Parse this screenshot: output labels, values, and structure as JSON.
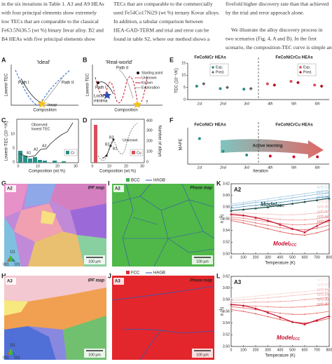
{
  "body_text": {
    "columns": [
      [
        "in the six iterations in Table 1. A3 and A9 HEAs",
        "with four principal elements show extremely",
        "low TECs that are comparable to the classical",
        "Fe63.5Ni36.5 (wt %) binary Invar alloy. B2 and",
        "B4 HEAs with five principal elements show"
      ],
      [
        "TECs that are comparable to the commercially",
        "used Fe54Co17Ni29 (wt %) ternary Kovar alloys.",
        "In addition, a tabular comparison between",
        "HEA-GAD-TERM and trial and error can be",
        "found in table S2, where our method shows a"
      ],
      [
        "fivefold higher discovery rate than that achieved",
        "by the trial and error approach alone.",
        "We illustrate the alloy discovery process in",
        "two scenarios (Fig. 4, A and B). In the first",
        "scenario, the composition-TEC curve is simple and"
      ]
    ]
  },
  "panels": {
    "A": {
      "label": "A",
      "title": "'Ideal'",
      "y_label": "Lowest-TEC",
      "x_label": "Composition",
      "annotations": [
        "Path I",
        "Path II",
        "Invar"
      ]
    },
    "B": {
      "label": "B",
      "title": "'Real-world'",
      "y_label": "Lowest-TEC",
      "x_label": "Composition",
      "annotations": [
        "Path I",
        "Path II",
        "Local",
        "minima",
        "?"
      ],
      "legend": [
        "Starting point",
        "Unknown",
        "Known",
        "Exploration"
      ]
    },
    "C": {
      "label": "C",
      "y_label": "Lowest-TEC (10⁻⁶/K)",
      "x_label": "Composition (wt.%)",
      "annotation": [
        "Observed",
        "lowest TEC"
      ],
      "points": [
        "A1",
        "A2",
        "A3"
      ],
      "legend": "Cr",
      "xticks": [
        0,
        10,
        20,
        30
      ],
      "yticks": [
        0,
        5,
        10
      ]
    },
    "D": {
      "label": "D",
      "x_label": "Composition (wt.%)",
      "y2_label": "Number of alloys",
      "annotations": [
        "B3",
        "B2",
        "B1",
        "Unknown"
      ],
      "legend": "Cu",
      "xticks": [
        0,
        10,
        20,
        30
      ],
      "y2ticks": [
        0,
        100,
        200,
        300,
        400
      ]
    },
    "E": {
      "label": "E",
      "groups": [
        "FeCoNiCr HEAs",
        "FeCoNiCrCu HEAs"
      ],
      "y_label": "TEC (10⁻⁶/K)",
      "categories": [
        "1st",
        "2nd",
        "3rd",
        "4th",
        "5th",
        "6th"
      ],
      "ylim": [
        0,
        15
      ],
      "yticks": [
        0,
        5,
        10,
        15
      ],
      "series": [
        {
          "name": "Exp.",
          "values": [
            5.5,
            4.5,
            4.3,
            6.5,
            7.5,
            6
          ]
        },
        {
          "name": "Pred.",
          "values": [
            6.5,
            5,
            4.5,
            6,
            7,
            5.5
          ]
        }
      ]
    },
    "F": {
      "label": "F",
      "groups": [
        "FeCoNiCr HEAs",
        "FeCoNiCrCu HEAs"
      ],
      "y_label": "MAPE",
      "x_label": "Iteration",
      "arrow": "Active learning",
      "categories": [
        "1st",
        "2nd",
        "3rd",
        "4th",
        "5th",
        "6th"
      ],
      "ylim": [
        0,
        1
      ],
      "values": [
        0.7,
        0.35,
        0.25,
        0.22,
        0.2,
        0.2
      ]
    },
    "G": {
      "label": "G",
      "tag": "A2",
      "map": "IPF map",
      "scale": "100 μm",
      "triangle": [
        "111",
        "001",
        "101"
      ]
    },
    "H": {
      "label": "H",
      "tag": "A3",
      "map": "IPF map",
      "scale": "100 μm",
      "triangle": [
        "111",
        "001",
        "101"
      ]
    },
    "I": {
      "label": "I",
      "tag": "A2",
      "map": "Phase map",
      "scale": "100 μm",
      "legend": [
        "BCC",
        "HAGB"
      ]
    },
    "J": {
      "label": "J",
      "tag": "A3",
      "map": "Phase map",
      "scale": "100 μm",
      "legend": [
        "FCC",
        "HAGB"
      ]
    },
    "K": {
      "label": "K",
      "tag": "A2",
      "y_label": "a (Å)",
      "x_label": "Temperature (K)",
      "x": [
        0,
        100,
        200,
        300,
        400,
        500,
        600,
        700,
        800
      ],
      "xlim": [
        0,
        800
      ],
      "xticks": [
        0,
        100,
        200,
        300,
        400,
        500,
        600,
        700,
        800
      ],
      "ylim": [
        3.5,
        3.62
      ],
      "yticks": [
        {
          "value": 3.5,
          "label": "3.50"
        },
        {
          "value": 3.52,
          "label": "3.52"
        },
        {
          "value": 3.54,
          "label": "3.54"
        },
        {
          "value": 3.56,
          "label": "3.56"
        },
        {
          "value": 3.58,
          "label": "3.58"
        },
        {
          "value": 3.6,
          "label": "3.60"
        },
        {
          "value": 3.62,
          "label": "3.62"
        }
      ],
      "series": [
        {
          "name": "η=0.10",
          "color": "#a9cde6",
          "values": [
            3.585,
            3.588,
            3.591,
            3.594,
            3.597,
            3.6,
            3.603,
            3.606,
            3.609
          ]
        },
        {
          "name": "η=0.16",
          "color": "#7fb5d9",
          "values": [
            3.582,
            3.585,
            3.588,
            3.59,
            3.593,
            3.596,
            3.599,
            3.602,
            3.604
          ]
        },
        {
          "name": "η=0.24",
          "color": "#4f97c6",
          "values": [
            3.578,
            3.581,
            3.583,
            3.586,
            3.588,
            3.591,
            3.593,
            3.596,
            3.598
          ]
        },
        {
          "name": "η=0.30",
          "color": "#f4c2c0",
          "values": [
            3.57,
            3.57,
            3.569,
            3.568,
            3.567,
            3.567,
            3.568,
            3.57,
            3.572
          ]
        },
        {
          "name": "η=0.36",
          "color": "#efa4a1",
          "values": [
            3.566,
            3.565,
            3.563,
            3.561,
            3.559,
            3.558,
            3.558,
            3.56,
            3.563
          ]
        },
        {
          "name": "η=0.40",
          "color": "#e98682",
          "values": [
            3.563,
            3.561,
            3.558,
            3.555,
            3.552,
            3.55,
            3.55,
            3.552,
            3.556
          ]
        },
        {
          "name": "η=0.44",
          "color": "#e26863",
          "values": [
            3.56,
            3.557,
            3.553,
            3.549,
            3.545,
            3.542,
            3.541,
            3.544,
            3.549
          ]
        },
        {
          "name": "η=0.50",
          "color": "#db4a45",
          "values": [
            3.557,
            3.553,
            3.548,
            3.543,
            3.538,
            3.534,
            3.532,
            3.536,
            3.542
          ]
        }
      ],
      "models": [
        {
          "name": "Model",
          "sub": "BCC",
          "color": "#1f4e4a",
          "values": [
            3.574,
            3.576,
            3.578,
            3.58,
            3.583,
            3.586,
            3.589,
            3.592,
            3.595
          ]
        },
        {
          "name": "Model",
          "sub": "FCC",
          "color": "#c8102e",
          "values": [
            3.568,
            3.566,
            3.562,
            3.557,
            3.55,
            3.543,
            3.537,
            3.548,
            3.558
          ]
        }
      ]
    },
    "L": {
      "label": "L",
      "tag": "A3",
      "y_label": "a (Å)",
      "x_label": "Temperature (K)",
      "x": [
        0,
        100,
        200,
        300,
        400,
        500,
        600,
        700,
        800
      ],
      "xlim": [
        0,
        800
      ],
      "xticks": [
        0,
        100,
        200,
        300,
        400,
        500,
        600,
        700,
        800
      ],
      "ylim": [
        3.5,
        3.62
      ],
      "yticks": [
        {
          "value": 3.5,
          "label": "3.50"
        },
        {
          "value": 3.52,
          "label": "3.52"
        },
        {
          "value": 3.54,
          "label": "3.54"
        },
        {
          "value": 3.56,
          "label": "3.56"
        },
        {
          "value": 3.58,
          "label": "3.58"
        },
        {
          "value": 3.6,
          "label": "3.60"
        },
        {
          "value": 3.62,
          "label": "3.62"
        }
      ],
      "series": [
        {
          "name": "η=0.07",
          "color": "#f8d9d7",
          "values": [
            3.582,
            3.584,
            3.586,
            3.588,
            3.59,
            3.592,
            3.594,
            3.596,
            3.598
          ]
        },
        {
          "name": "η=0.10",
          "color": "#f4c2c0",
          "values": [
            3.579,
            3.58,
            3.582,
            3.583,
            3.585,
            3.587,
            3.589,
            3.591,
            3.593
          ]
        },
        {
          "name": "η=0.16",
          "color": "#efa4a1",
          "values": [
            3.575,
            3.575,
            3.576,
            3.576,
            3.577,
            3.578,
            3.58,
            3.582,
            3.584
          ]
        },
        {
          "name": "η=0.24",
          "color": "#e98682",
          "values": [
            3.571,
            3.57,
            3.569,
            3.568,
            3.567,
            3.567,
            3.568,
            3.57,
            3.572
          ]
        },
        {
          "name": "η=0.30",
          "color": "#e26863",
          "values": [
            3.568,
            3.566,
            3.563,
            3.56,
            3.557,
            3.555,
            3.555,
            3.557,
            3.56
          ]
        },
        {
          "name": "η=0.40",
          "color": "#db4a45",
          "values": [
            3.563,
            3.56,
            3.556,
            3.551,
            3.546,
            3.542,
            3.54,
            3.543,
            3.548
          ]
        }
      ],
      "models": [
        {
          "name": "Model",
          "sub": "FCC",
          "color": "#c8102e",
          "values": [
            3.572,
            3.57,
            3.565,
            3.558,
            3.55,
            3.542,
            3.538,
            3.545,
            3.552
          ]
        }
      ]
    }
  }
}
